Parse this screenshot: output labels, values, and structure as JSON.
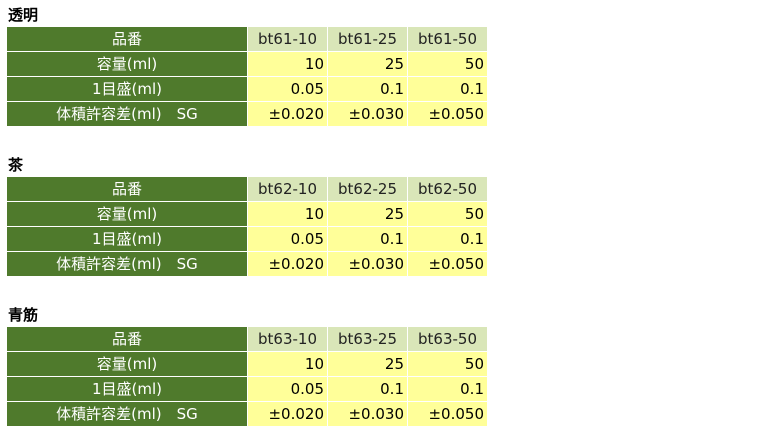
{
  "sections": [
    {
      "title": "透明",
      "header": [
        "品番",
        "bt61-10",
        "bt61-25",
        "bt61-50"
      ],
      "rows": [
        [
          "容量(ml)",
          "10",
          "25",
          "50"
        ],
        [
          "1目盛(ml)",
          "0.05",
          "0.1",
          "0.1"
        ],
        [
          "体積許容差(ml)　SG",
          "±0.020",
          "±0.030",
          "±0.050"
        ]
      ]
    },
    {
      "title": "茶",
      "header": [
        "品番",
        "bt62-10",
        "bt62-25",
        "bt62-50"
      ],
      "rows": [
        [
          "容量(ml)",
          "10",
          "25",
          "50"
        ],
        [
          "1目盛(ml)",
          "0.05",
          "0.1",
          "0.1"
        ],
        [
          "体積許容差(ml)　SG",
          "±0.020",
          "±0.030",
          "±0.050"
        ]
      ]
    },
    {
      "title": "青筋",
      "header": [
        "品番",
        "bt63-10",
        "bt63-25",
        "bt63-50"
      ],
      "rows": [
        [
          "容量(ml)",
          "10",
          "25",
          "50"
        ],
        [
          "1目盛(ml)",
          "0.05",
          "0.1",
          "0.1"
        ],
        [
          "体積許容差(ml)　SG",
          "±0.020",
          "±0.030",
          "±0.050"
        ]
      ]
    }
  ]
}
